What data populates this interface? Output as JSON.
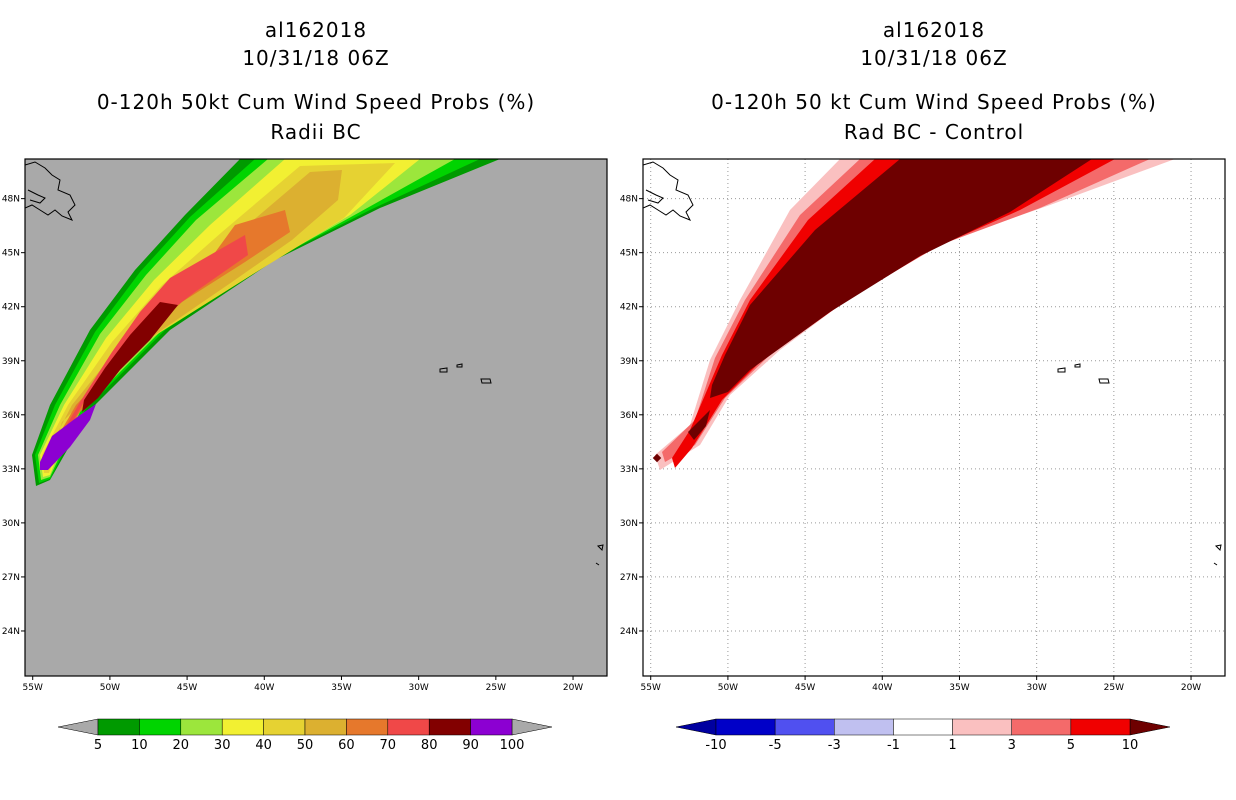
{
  "chart_data": [
    {
      "type": "heatmap",
      "storm_id": "al162018",
      "datetime": "10/31/18 06Z",
      "title": "0-120h 50kt Cum Wind Speed Probs (%)",
      "subtitle": "Radii BC",
      "x_ticks": [
        "55W",
        "50W",
        "45W",
        "40W",
        "35W",
        "30W",
        "25W",
        "20W"
      ],
      "y_ticks": [
        "48N",
        "45N",
        "42N",
        "39N",
        "36N",
        "33N",
        "30N",
        "27N",
        "24N"
      ],
      "xlim": [
        -55.5,
        -17.8
      ],
      "ylim": [
        21.5,
        50.2
      ],
      "grid": false,
      "background_color": "#a9a9a9",
      "colorbar": {
        "labels": [
          "5",
          "10",
          "20",
          "30",
          "40",
          "50",
          "60",
          "70",
          "80",
          "90",
          "100"
        ],
        "colors": [
          "#009a00",
          "#00d400",
          "#9ce63c",
          "#f2f032",
          "#e6d232",
          "#dcb030",
          "#e6782c",
          "#f04848",
          "#820000",
          "#8c00d2"
        ],
        "under_color": "#a9a9a9",
        "over_color": "#a9a9a9"
      }
    },
    {
      "type": "heatmap",
      "storm_id": "al162018",
      "datetime": "10/31/18 06Z",
      "title": "0-120h 50 kt Cum Wind Speed Probs (%)",
      "subtitle": "Rad BC - Control",
      "x_ticks": [
        "55W",
        "50W",
        "45W",
        "40W",
        "35W",
        "30W",
        "25W",
        "20W"
      ],
      "y_ticks": [
        "48N",
        "45N",
        "42N",
        "39N",
        "36N",
        "33N",
        "30N",
        "27N",
        "24N"
      ],
      "xlim": [
        -55.5,
        -17.8
      ],
      "ylim": [
        21.5,
        50.2
      ],
      "grid": true,
      "background_color": "#ffffff",
      "colorbar": {
        "labels": [
          "-10",
          "-5",
          "-3",
          "-1",
          "1",
          "3",
          "5",
          "10"
        ],
        "colors": [
          "#0000c8",
          "#5050f0",
          "#c0c0f0",
          "#ffffff",
          "#fac0c0",
          "#f46a6a",
          "#f00000"
        ],
        "under_color": "#0000a0",
        "over_color": "#6e0000"
      }
    }
  ]
}
